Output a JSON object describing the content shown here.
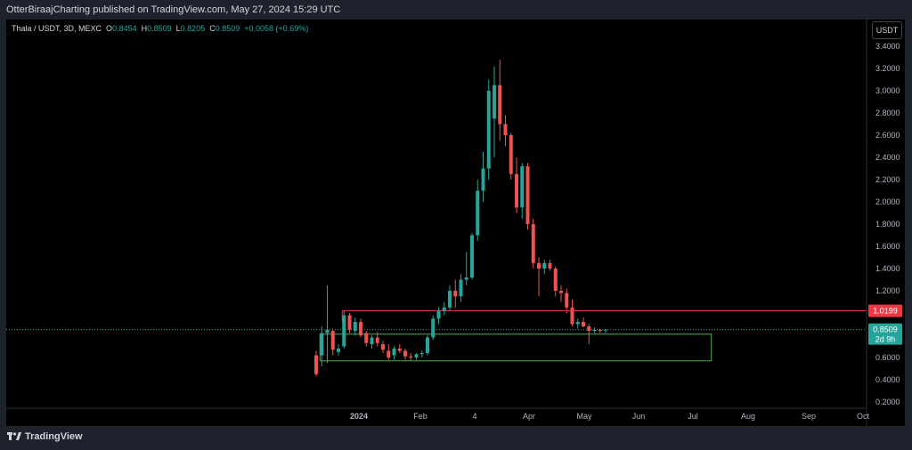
{
  "header": {
    "published": "OtterBiraajCharting published on TradingView.com, May 27, 2024 15:29 UTC"
  },
  "legend": {
    "symbol": "Thala / USDT, 3D, MEXC",
    "open_label": "O",
    "open": "0.8454",
    "high_label": "H",
    "high": "0.8509",
    "low_label": "L",
    "low": "0.8205",
    "close_label": "C",
    "close": "0.8509",
    "change": "+0.0058 (+0.69%)"
  },
  "currency_button": "USDT",
  "footer": {
    "brand": "TradingView"
  },
  "chart_data": {
    "type": "candlestick",
    "symbol": "Thala / USDT",
    "interval": "3D",
    "exchange": "MEXC",
    "x_labels": [
      "2024",
      "Feb",
      "4",
      "Apr",
      "May",
      "Jun",
      "Jul",
      "Aug",
      "Sep",
      "Oct"
    ],
    "y_ticks": [
      "3.4000",
      "3.2000",
      "3.0000",
      "2.8000",
      "2.6000",
      "2.4000",
      "2.2000",
      "2.0000",
      "1.8000",
      "1.6000",
      "1.4000",
      "1.2000",
      "1.0000",
      "0.8000",
      "0.6000",
      "0.4000",
      "0.2000"
    ],
    "ylim": [
      0.15,
      3.5
    ],
    "up_color": "#26a69a",
    "down_color": "#ef5350",
    "candles": [
      {
        "o": 0.62,
        "h": 0.66,
        "l": 0.43,
        "c": 0.45
      },
      {
        "o": 0.62,
        "h": 0.88,
        "l": 0.52,
        "c": 0.82
      },
      {
        "o": 0.82,
        "h": 1.25,
        "l": 0.55,
        "c": 0.85
      },
      {
        "o": 0.84,
        "h": 0.86,
        "l": 0.62,
        "c": 0.67
      },
      {
        "o": 0.65,
        "h": 0.72,
        "l": 0.62,
        "c": 0.68
      },
      {
        "o": 0.7,
        "h": 1.02,
        "l": 0.68,
        "c": 0.98
      },
      {
        "o": 0.98,
        "h": 1.0,
        "l": 0.82,
        "c": 0.85
      },
      {
        "o": 0.84,
        "h": 0.96,
        "l": 0.8,
        "c": 0.92
      },
      {
        "o": 0.92,
        "h": 0.95,
        "l": 0.78,
        "c": 0.8
      },
      {
        "o": 0.82,
        "h": 0.84,
        "l": 0.7,
        "c": 0.73
      },
      {
        "o": 0.72,
        "h": 0.8,
        "l": 0.68,
        "c": 0.78
      },
      {
        "o": 0.78,
        "h": 0.83,
        "l": 0.7,
        "c": 0.73
      },
      {
        "o": 0.72,
        "h": 0.75,
        "l": 0.64,
        "c": 0.67
      },
      {
        "o": 0.66,
        "h": 0.72,
        "l": 0.58,
        "c": 0.6
      },
      {
        "o": 0.62,
        "h": 0.7,
        "l": 0.58,
        "c": 0.68
      },
      {
        "o": 0.68,
        "h": 0.72,
        "l": 0.64,
        "c": 0.66
      },
      {
        "o": 0.66,
        "h": 0.68,
        "l": 0.58,
        "c": 0.61
      },
      {
        "o": 0.61,
        "h": 0.64,
        "l": 0.57,
        "c": 0.6
      },
      {
        "o": 0.6,
        "h": 0.64,
        "l": 0.58,
        "c": 0.63
      },
      {
        "o": 0.63,
        "h": 0.66,
        "l": 0.6,
        "c": 0.64
      },
      {
        "o": 0.64,
        "h": 0.8,
        "l": 0.62,
        "c": 0.78
      },
      {
        "o": 0.78,
        "h": 0.98,
        "l": 0.76,
        "c": 0.95
      },
      {
        "o": 0.95,
        "h": 1.05,
        "l": 0.9,
        "c": 1.02
      },
      {
        "o": 1.02,
        "h": 1.1,
        "l": 0.98,
        "c": 1.05
      },
      {
        "o": 1.05,
        "h": 1.25,
        "l": 1.02,
        "c": 1.2
      },
      {
        "o": 1.2,
        "h": 1.3,
        "l": 1.05,
        "c": 1.15
      },
      {
        "o": 1.15,
        "h": 1.35,
        "l": 1.1,
        "c": 1.3
      },
      {
        "o": 1.3,
        "h": 1.55,
        "l": 1.25,
        "c": 1.32
      },
      {
        "o": 1.32,
        "h": 1.72,
        "l": 1.3,
        "c": 1.7
      },
      {
        "o": 1.7,
        "h": 2.2,
        "l": 1.65,
        "c": 2.1
      },
      {
        "o": 2.1,
        "h": 2.45,
        "l": 2.0,
        "c": 2.3
      },
      {
        "o": 2.3,
        "h": 3.1,
        "l": 2.2,
        "c": 3.0
      },
      {
        "o": 2.75,
        "h": 3.22,
        "l": 2.4,
        "c": 3.05
      },
      {
        "o": 3.05,
        "h": 3.28,
        "l": 2.55,
        "c": 2.7
      },
      {
        "o": 2.7,
        "h": 2.78,
        "l": 2.5,
        "c": 2.6
      },
      {
        "o": 2.6,
        "h": 2.62,
        "l": 2.2,
        "c": 2.25
      },
      {
        "o": 2.25,
        "h": 2.4,
        "l": 1.9,
        "c": 1.95
      },
      {
        "o": 1.95,
        "h": 2.35,
        "l": 1.85,
        "c": 2.32
      },
      {
        "o": 2.32,
        "h": 2.35,
        "l": 1.75,
        "c": 1.8
      },
      {
        "o": 1.8,
        "h": 1.85,
        "l": 1.4,
        "c": 1.45
      },
      {
        "o": 1.45,
        "h": 1.5,
        "l": 1.15,
        "c": 1.4
      },
      {
        "o": 1.4,
        "h": 1.48,
        "l": 1.35,
        "c": 1.45
      },
      {
        "o": 1.45,
        "h": 1.48,
        "l": 1.38,
        "c": 1.4
      },
      {
        "o": 1.4,
        "h": 1.42,
        "l": 1.15,
        "c": 1.2
      },
      {
        "o": 1.2,
        "h": 1.25,
        "l": 1.1,
        "c": 1.18
      },
      {
        "o": 1.18,
        "h": 1.22,
        "l": 1.0,
        "c": 1.05
      },
      {
        "o": 1.05,
        "h": 1.12,
        "l": 0.88,
        "c": 0.9
      },
      {
        "o": 0.9,
        "h": 0.95,
        "l": 0.86,
        "c": 0.92
      },
      {
        "o": 0.92,
        "h": 0.96,
        "l": 0.87,
        "c": 0.88
      },
      {
        "o": 0.88,
        "h": 0.9,
        "l": 0.72,
        "c": 0.84
      },
      {
        "o": 0.84,
        "h": 0.87,
        "l": 0.82,
        "c": 0.85
      },
      {
        "o": 0.85,
        "h": 0.86,
        "l": 0.82,
        "c": 0.84
      },
      {
        "o": 0.8454,
        "h": 0.8509,
        "l": 0.8205,
        "c": 0.8509
      }
    ],
    "levels": {
      "resistance": "1.0199",
      "last_price": "0.8509",
      "countdown": "2d 9h"
    },
    "zones": [
      {
        "name": "resistance-line",
        "from_candle": 5,
        "to_candle": "end",
        "price": 1.0199,
        "color": "#f23645"
      },
      {
        "name": "support-zone",
        "from_candle": 1,
        "to_candle": 71,
        "top": 0.81,
        "bottom": 0.57,
        "color": "#4caf50"
      }
    ]
  }
}
